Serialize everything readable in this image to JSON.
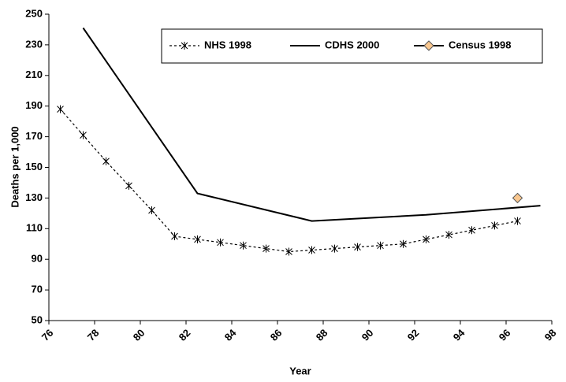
{
  "chart_data": {
    "type": "line",
    "xlabel": "Year",
    "ylabel": "Deaths per 1,000",
    "xlim": [
      76,
      98
    ],
    "xticks": [
      76,
      78,
      80,
      82,
      84,
      86,
      88,
      90,
      92,
      94,
      96,
      98
    ],
    "ylim": [
      50,
      250
    ],
    "yticks": [
      50,
      70,
      90,
      110,
      130,
      150,
      170,
      190,
      210,
      230,
      250
    ],
    "series": [
      {
        "name": "NHS 1998",
        "color": "#000000",
        "dash": true,
        "marker": "star",
        "x": [
          76.5,
          77.5,
          78.5,
          79.5,
          80.5,
          81.5,
          82.5,
          83.5,
          84.5,
          85.5,
          86.5,
          87.5,
          88.5,
          89.5,
          90.5,
          91.5,
          92.5,
          93.5,
          94.5,
          95.5,
          96.5
        ],
        "values": [
          188,
          171,
          154,
          138,
          122,
          105,
          103,
          101,
          99,
          97,
          95,
          96,
          97,
          98,
          99,
          100,
          103,
          106,
          109,
          112,
          115
        ]
      },
      {
        "name": "CDHS 2000",
        "color": "#000000",
        "dash": false,
        "marker": "none",
        "x": [
          77.5,
          82.5,
          87.5,
          92.5,
          97.5
        ],
        "values": [
          241,
          133,
          115,
          119,
          125
        ]
      },
      {
        "name": "Census 1998",
        "color": "#f9c78f",
        "dash": false,
        "marker": "diamond",
        "x": [
          96.5
        ],
        "values": [
          130
        ]
      }
    ]
  }
}
